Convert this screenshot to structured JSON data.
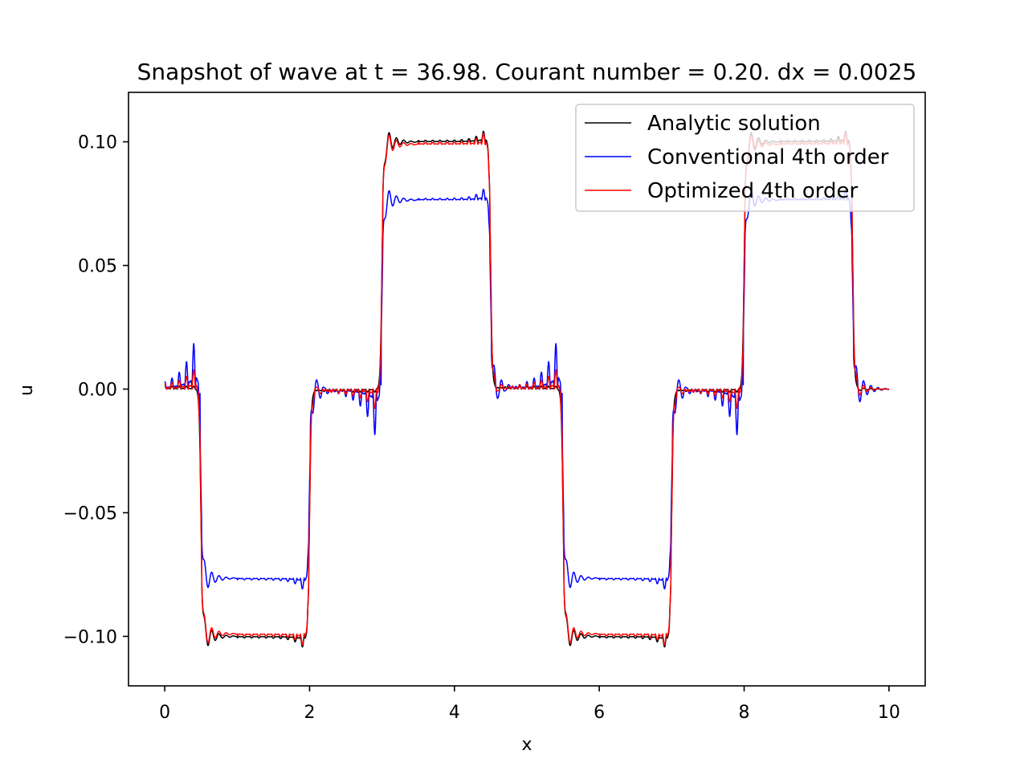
{
  "chart_data": {
    "type": "line",
    "title": "Snapshot of wave at t = 36.98. Courant number = 0.20. dx = 0.0025",
    "xlabel": "x",
    "ylabel": "u",
    "xlim": [
      -0.5,
      10.5
    ],
    "ylim": [
      -0.12,
      0.12
    ],
    "x_ticks": [
      0,
      2,
      4,
      6,
      8,
      10
    ],
    "x_tick_labels": [
      "0",
      "2",
      "4",
      "6",
      "8",
      "10"
    ],
    "y_ticks": [
      0.1,
      0.05,
      0.0,
      -0.05,
      -0.1
    ],
    "y_tick_labels": [
      "0.10",
      "0.05",
      "0.00",
      "−0.05",
      "−0.10"
    ],
    "grid": false,
    "legend_position": "top-right",
    "square_wave": {
      "x_start": 0,
      "x_end": 10,
      "segments": [
        {
          "from": 0.0,
          "to": 0.5,
          "value": 0.0
        },
        {
          "from": 0.5,
          "to": 2.0,
          "value": -0.1
        },
        {
          "from": 2.0,
          "to": 3.0,
          "value": 0.0
        },
        {
          "from": 3.0,
          "to": 4.5,
          "value": 0.1
        },
        {
          "from": 4.5,
          "to": 5.5,
          "value": 0.0
        },
        {
          "from": 5.5,
          "to": 7.0,
          "value": -0.1
        },
        {
          "from": 7.0,
          "to": 8.0,
          "value": 0.0
        },
        {
          "from": 8.0,
          "to": 9.5,
          "value": 0.1
        },
        {
          "from": 9.5,
          "to": 10.0,
          "value": 0.0
        }
      ]
    },
    "series": [
      {
        "name": "Analytic solution",
        "color": "#000000",
        "plateau": 0.1,
        "overshoot": 0.0085,
        "ripple": 0.0012,
        "lead_ripple": 0.0
      },
      {
        "name": "Conventional 4th order",
        "color": "#0000ff",
        "plateau": 0.0765,
        "overshoot": 0.0085,
        "ripple": 0.0012,
        "lead_ripple": 0.03
      },
      {
        "name": "Optimized 4th order",
        "color": "#ff0000",
        "plateau": 0.099,
        "overshoot": 0.0085,
        "ripple": 0.0015,
        "lead_ripple": 0.011
      }
    ]
  }
}
